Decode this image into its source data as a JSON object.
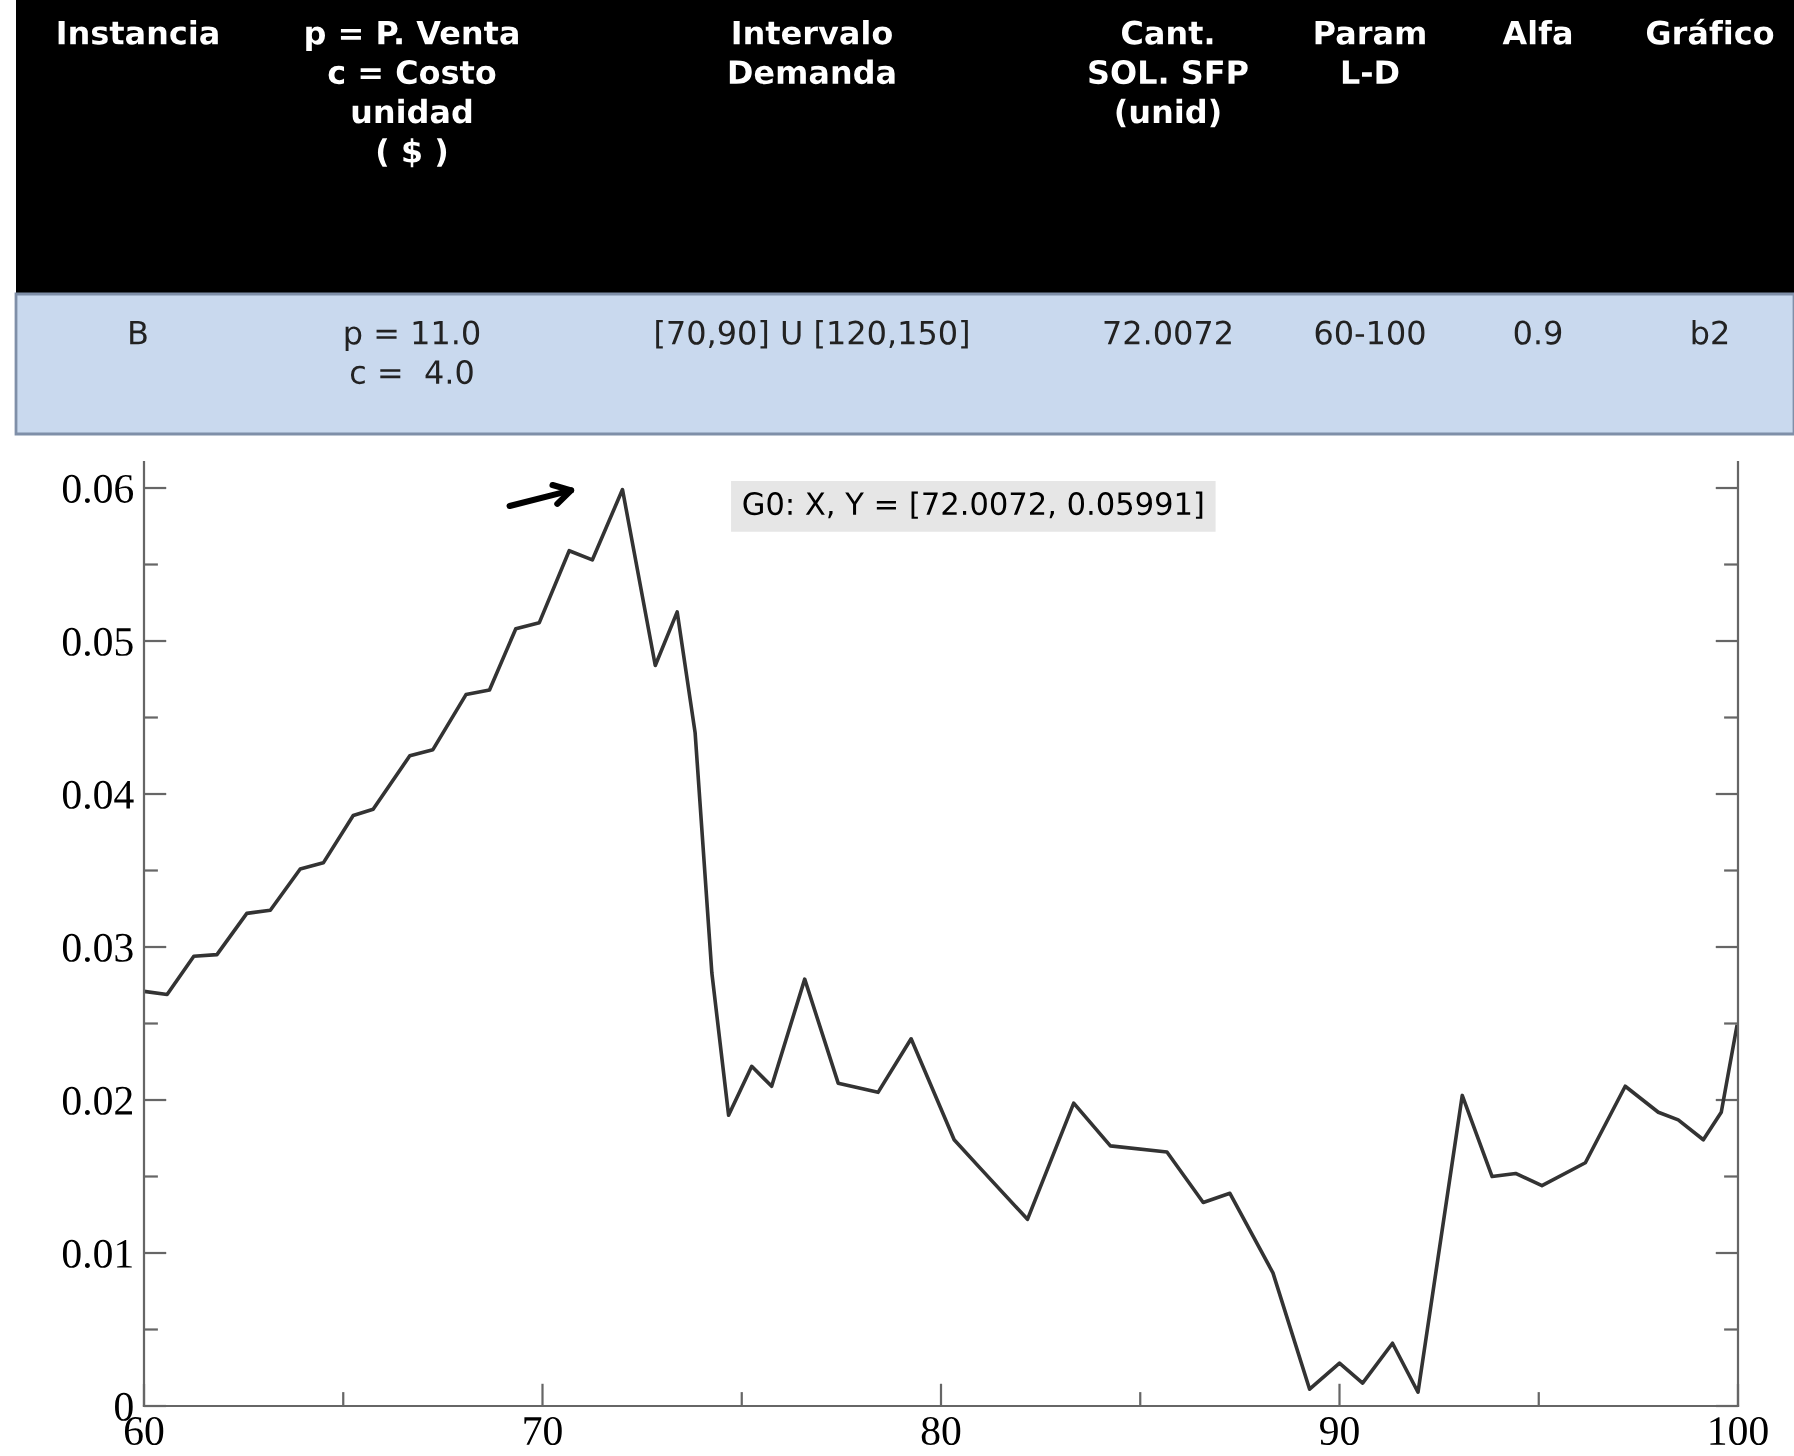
{
  "chart_data": {
    "type": "line",
    "x": [
      60,
      60.58,
      61.25,
      61.83,
      62.58,
      63.17,
      63.92,
      64.5,
      65.25,
      65.75,
      66.67,
      67.25,
      68.08,
      68.67,
      69.33,
      69.92,
      70.67,
      71.25,
      72.0072,
      72.83,
      73.38,
      73.83,
      74.25,
      74.67,
      75.25,
      75.75,
      76.58,
      77.42,
      78.42,
      79.25,
      80.33,
      81,
      82.17,
      83.33,
      84.25,
      85.67,
      86.58,
      87.25,
      88.33,
      89.25,
      90,
      90.58,
      91.33,
      91.97,
      93.08,
      93.83,
      94.42,
      95.08,
      96.17,
      97.17,
      98,
      98.5,
      99.13,
      99.58,
      99.97
    ],
    "series": [
      {
        "color": "#333333",
        "values": [
          0.0271,
          0.0269,
          0.0294,
          0.0295,
          0.0322,
          0.0324,
          0.0351,
          0.0355,
          0.0386,
          0.039,
          0.0425,
          0.0429,
          0.0465,
          0.0468,
          0.0508,
          0.0512,
          0.0559,
          0.0553,
          0.0599,
          0.0484,
          0.0519,
          0.044,
          0.0283,
          0.019,
          0.0222,
          0.0209,
          0.0279,
          0.0211,
          0.0205,
          0.024,
          0.0174,
          0.0155,
          0.0122,
          0.0198,
          0.017,
          0.0166,
          0.0133,
          0.0139,
          0.0087,
          0.0011,
          0.0028,
          0.0015,
          0.0041,
          0.0009,
          0.0203,
          0.015,
          0.0152,
          0.0144,
          0.0159,
          0.0209,
          0.0192,
          0.0187,
          0.0174,
          0.0192,
          0.0248
        ]
      }
    ],
    "xlim": [
      60,
      100
    ],
    "xticks": [
      60,
      {
        "value": 65,
        "label": null
      },
      70,
      {
        "value": 75,
        "label": null
      },
      80,
      {
        "value": 85,
        "label": null
      },
      90,
      {
        "value": 95,
        "label": null
      },
      100
    ],
    "ylim": [
      0,
      0.0617
    ],
    "yticks": [
      0,
      {
        "value": 0.005,
        "label": null
      },
      0.01,
      {
        "value": 0.015,
        "label": null
      },
      0.02,
      {
        "value": 0.025,
        "label": null
      },
      0.03,
      {
        "value": 0.035,
        "label": null
      },
      0.04,
      {
        "value": 0.045,
        "label": null
      },
      0.05,
      {
        "value": 0.055,
        "label": null
      },
      0.06
    ],
    "grid": false,
    "legend": false,
    "marker": "none",
    "line_style": "solid",
    "annotations": [
      "G0: X, Y = [72.0072, 0.05991]",
      "Instancia",
      "p = P. Venta\nc = Costo\nunidad\n( $ )",
      "Intervalo\nDemanda",
      "Cant.\nSOL. SFP\n(unid)",
      "Param\nL-D",
      "Alfa",
      "Gráfico",
      "B",
      "p = 11.0\nc =  4.0",
      "[70,90] U [120,150]",
      "72.0072",
      "60-100",
      "0.9",
      "b2"
    ]
  }
}
